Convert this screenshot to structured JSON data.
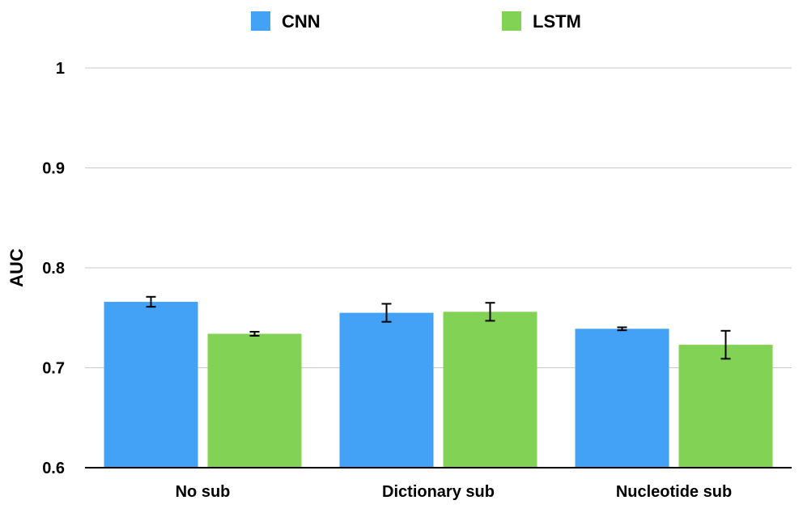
{
  "chart_data": {
    "type": "bar",
    "ylabel": "AUC",
    "xlabel": "",
    "ylim": [
      0.6,
      1.0
    ],
    "yticks": [
      "0.6",
      "0.7",
      "0.8",
      "0.9",
      "1"
    ],
    "categories": [
      "No sub",
      "Dictionary sub",
      "Nucleotide sub"
    ],
    "series": [
      {
        "name": "CNN",
        "color": "#43a2f5",
        "values": [
          0.766,
          0.755,
          0.739
        ],
        "errors": [
          0.005,
          0.009,
          0.0015
        ]
      },
      {
        "name": "LSTM",
        "color": "#82d355",
        "values": [
          0.734,
          0.756,
          0.723
        ],
        "errors": [
          0.002,
          0.009,
          0.014
        ]
      }
    ],
    "grid": true,
    "legend_position": "top-center"
  }
}
